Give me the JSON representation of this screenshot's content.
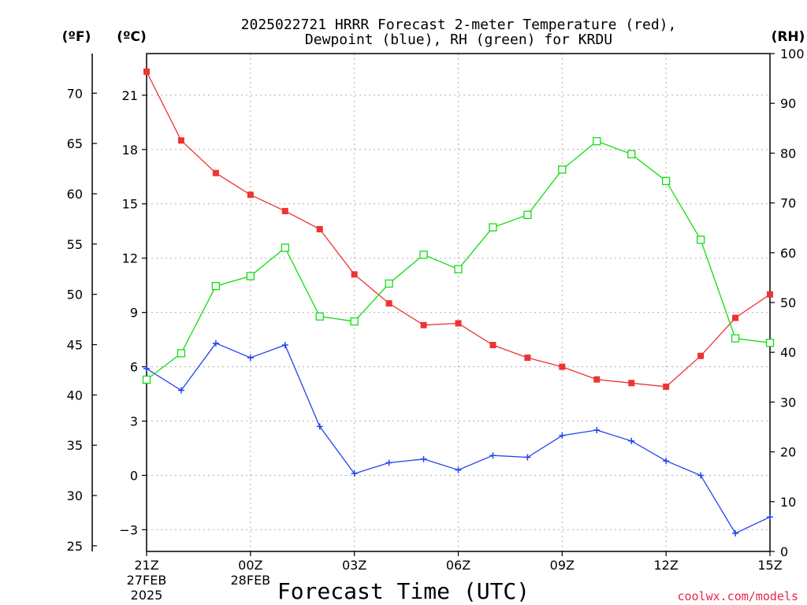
{
  "chart_data": {
    "type": "line",
    "title_line1": "2025022721 HRRR Forecast 2-meter Temperature (red),",
    "title_line2": "Dewpoint (blue), RH (green) for KRDU",
    "xlabel": "Forecast Time (UTC)",
    "credit": "coolwx.com/models",
    "axis_units": {
      "left_outer": "(ºF)",
      "left_inner": "(ºC)",
      "right": "(RH)"
    },
    "x": [
      "21Z",
      "22Z",
      "23Z",
      "00Z",
      "01Z",
      "02Z",
      "03Z",
      "04Z",
      "05Z",
      "06Z",
      "07Z",
      "08Z",
      "09Z",
      "10Z",
      "11Z",
      "12Z",
      "13Z",
      "14Z",
      "15Z"
    ],
    "x_tick_labels": [
      {
        "label": "21Z",
        "date": "27FEB",
        "year": "2025"
      },
      {
        "label": "00Z",
        "date": "28FEB",
        "year": ""
      },
      {
        "label": "03Z",
        "date": "",
        "year": ""
      },
      {
        "label": "06Z",
        "date": "",
        "year": ""
      },
      {
        "label": "09Z",
        "date": "",
        "year": ""
      },
      {
        "label": "12Z",
        "date": "",
        "year": ""
      },
      {
        "label": "15Z",
        "date": "",
        "year": ""
      }
    ],
    "axes": {
      "celsius": {
        "ylim": [
          -4.2,
          23.3
        ],
        "ticks": [
          -3,
          0,
          3,
          6,
          9,
          12,
          15,
          18,
          21
        ]
      },
      "fahrenheit": {
        "ticks": [
          25,
          30,
          35,
          40,
          45,
          50,
          55,
          60,
          65,
          70
        ]
      },
      "rh": {
        "ylim": [
          0,
          100
        ],
        "ticks": [
          0,
          10,
          20,
          30,
          40,
          50,
          60,
          70,
          80,
          90,
          100
        ]
      }
    },
    "grid": true,
    "series": [
      {
        "id": "temperature",
        "color": "#ee3333",
        "marker": "filled-square",
        "axis": "celsius",
        "values": [
          22.3,
          18.5,
          16.7,
          15.5,
          14.6,
          13.6,
          11.1,
          9.5,
          8.3,
          8.4,
          7.2,
          6.5,
          6.0,
          5.3,
          5.1,
          4.9,
          6.6,
          8.7,
          10.0
        ]
      },
      {
        "id": "dewpoint",
        "color": "#2244ee",
        "marker": "plus",
        "axis": "celsius",
        "values": [
          5.9,
          4.7,
          7.3,
          6.5,
          7.2,
          2.7,
          0.1,
          0.7,
          0.9,
          0.3,
          1.1,
          1.0,
          2.2,
          2.5,
          1.9,
          0.8,
          0.0,
          -3.2,
          -2.3
        ]
      },
      {
        "id": "rh",
        "color": "#11dd11",
        "marker": "open-square",
        "axis": "rh",
        "values": [
          34.5,
          39.8,
          53.3,
          55.3,
          61.0,
          47.2,
          46.2,
          53.8,
          59.6,
          56.7,
          65.1,
          67.6,
          76.7,
          82.4,
          79.8,
          74.4,
          62.6,
          42.8,
          41.9
        ]
      }
    ]
  }
}
